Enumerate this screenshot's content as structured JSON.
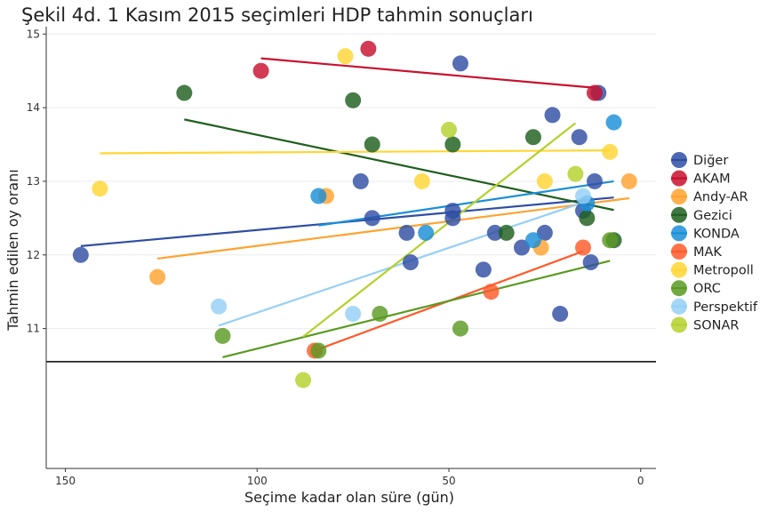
{
  "chart_data": {
    "type": "scatter",
    "title": "Şekil 4d. 1 Kasım 2015 seçimleri HDP tahmin sonuçları",
    "xlabel": "Seçime kadar olan süre (gün)",
    "ylabel": "Tahmin edilen oy oranı",
    "x_reversed": true,
    "xlim": [
      155,
      -4
    ],
    "ylim": [
      9.1,
      15.1
    ],
    "x_ticks": [
      150,
      100,
      50,
      0
    ],
    "y_ticks": [
      11,
      12,
      13,
      14,
      15
    ],
    "reference_line": 10.55,
    "grid": true,
    "legend_position": "right",
    "series": [
      {
        "name": "Diğer",
        "color": "#2f4ea3",
        "points": [
          [
            146,
            12.0
          ],
          [
            73,
            13.0
          ],
          [
            70,
            12.5
          ],
          [
            61,
            12.3
          ],
          [
            60,
            11.9
          ],
          [
            49,
            12.6
          ],
          [
            49,
            12.5
          ],
          [
            47,
            14.6
          ],
          [
            41,
            11.8
          ],
          [
            38,
            12.3
          ],
          [
            31,
            12.1
          ],
          [
            25,
            12.3
          ],
          [
            23,
            13.9
          ],
          [
            21,
            11.2
          ],
          [
            16,
            13.6
          ],
          [
            15,
            12.6
          ],
          [
            13,
            11.9
          ],
          [
            12,
            13.0
          ],
          [
            11,
            14.2
          ]
        ],
        "trend": [
          [
            146,
            12.12
          ],
          [
            7,
            12.78
          ]
        ]
      },
      {
        "name": "AKAM",
        "color": "#c8102e",
        "points": [
          [
            99,
            14.5
          ],
          [
            71,
            14.8
          ],
          [
            12,
            14.2
          ]
        ],
        "trend": [
          [
            99,
            14.67
          ],
          [
            12,
            14.27
          ]
        ]
      },
      {
        "name": "Andy-AR",
        "color": "#ffa22f",
        "points": [
          [
            126,
            11.7
          ],
          [
            82,
            12.8
          ],
          [
            26,
            12.1
          ],
          [
            3,
            13.0
          ]
        ],
        "trend": [
          [
            126,
            11.95
          ],
          [
            3,
            12.77
          ]
        ]
      },
      {
        "name": "Gezici",
        "color": "#1f5f1f",
        "points": [
          [
            119,
            14.2
          ],
          [
            75,
            14.1
          ],
          [
            70,
            13.5
          ],
          [
            49,
            13.5
          ],
          [
            35,
            12.3
          ],
          [
            28,
            13.6
          ],
          [
            14,
            12.5
          ],
          [
            7,
            12.2
          ]
        ],
        "trend": [
          [
            119,
            13.84
          ],
          [
            7,
            12.61
          ]
        ]
      },
      {
        "name": "KONDA",
        "color": "#1a8fd8",
        "points": [
          [
            84,
            12.8
          ],
          [
            56,
            12.3
          ],
          [
            28,
            12.2
          ],
          [
            14,
            12.7
          ],
          [
            7,
            13.8
          ]
        ],
        "trend": [
          [
            84,
            12.4
          ],
          [
            7,
            13.0
          ]
        ]
      },
      {
        "name": "MAK",
        "color": "#ff5a2a",
        "points": [
          [
            85,
            10.7
          ],
          [
            39,
            11.5
          ],
          [
            15,
            12.1
          ]
        ],
        "trend": [
          [
            85,
            10.7
          ],
          [
            15,
            12.05
          ]
        ]
      },
      {
        "name": "Metropoll",
        "color": "#ffd633",
        "points": [
          [
            141,
            12.9
          ],
          [
            77,
            14.7
          ],
          [
            57,
            13.0
          ],
          [
            25,
            13.0
          ],
          [
            8,
            13.4
          ]
        ],
        "trend": [
          [
            141,
            13.38
          ],
          [
            8,
            13.42
          ]
        ]
      },
      {
        "name": "ORC",
        "color": "#5b9a22",
        "points": [
          [
            109,
            10.9
          ],
          [
            84,
            10.7
          ],
          [
            68,
            11.2
          ],
          [
            47,
            11.0
          ],
          [
            8,
            12.2
          ]
        ],
        "trend": [
          [
            109,
            10.61
          ],
          [
            8,
            11.92
          ]
        ]
      },
      {
        "name": "Perspektif",
        "color": "#95cff5",
        "points": [
          [
            110,
            11.3
          ],
          [
            75,
            11.2
          ],
          [
            15,
            12.8
          ]
        ],
        "trend": [
          [
            110,
            11.04
          ],
          [
            14,
            12.73
          ]
        ]
      },
      {
        "name": "SONAR",
        "color": "#b5d12c",
        "points": [
          [
            88,
            10.3
          ],
          [
            50,
            13.7
          ],
          [
            17,
            13.1
          ]
        ],
        "trend": [
          [
            88,
            10.89
          ],
          [
            17,
            13.79
          ]
        ]
      }
    ]
  }
}
